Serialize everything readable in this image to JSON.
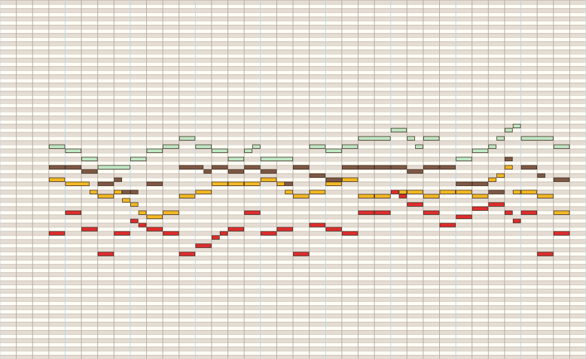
{
  "piano_roll": {
    "row_count": 87,
    "column_count": 36,
    "beats_per_bar": 4,
    "colors": {
      "background": "#fffef6",
      "row_alternate": "#e5dcd3",
      "row_line": "#b0a8a0",
      "beat_line": "#b4aaa3",
      "bar_line": "#bcd6e6",
      "note_outline": "#3b2a1c"
    },
    "tracks": [
      {
        "name": "green",
        "color": "#bfe6c4",
        "notes": [
          [
            3,
            35,
            1
          ],
          [
            4,
            36,
            1
          ],
          [
            5,
            38,
            1
          ],
          [
            6,
            40,
            2
          ],
          [
            8,
            38,
            1
          ],
          [
            9,
            36,
            1
          ],
          [
            10,
            35,
            1
          ],
          [
            11,
            33,
            1
          ],
          [
            12,
            35,
            1
          ],
          [
            13,
            36,
            1
          ],
          [
            14,
            38,
            1
          ],
          [
            15,
            36,
            0.5
          ],
          [
            15.5,
            35,
            0.5
          ],
          [
            16,
            38,
            2
          ],
          [
            18,
            40,
            1
          ],
          [
            19,
            35,
            1
          ],
          [
            20,
            36,
            1
          ],
          [
            21,
            35,
            1
          ],
          [
            22,
            33,
            2
          ],
          [
            24,
            31,
            1
          ],
          [
            25,
            33,
            0.5
          ],
          [
            25.5,
            35,
            0.5
          ],
          [
            26,
            33,
            1
          ],
          [
            28,
            38,
            1
          ],
          [
            29,
            36,
            1
          ],
          [
            30,
            35,
            0.5
          ],
          [
            30.5,
            33,
            0.5
          ],
          [
            31,
            31,
            0.5
          ],
          [
            31.5,
            30,
            0.5
          ],
          [
            32,
            33,
            2
          ],
          [
            34,
            35,
            1
          ]
        ]
      },
      {
        "name": "brown",
        "color": "#7e5845",
        "notes": [
          [
            3,
            40,
            1
          ],
          [
            4,
            40,
            1
          ],
          [
            5,
            41,
            1
          ],
          [
            6,
            44,
            1
          ],
          [
            7,
            43,
            0.5
          ],
          [
            7.5,
            46,
            0.5
          ],
          [
            8,
            46,
            0.5
          ],
          [
            9,
            44,
            1
          ],
          [
            11,
            40,
            1.5
          ],
          [
            12.5,
            41,
            0.5
          ],
          [
            13,
            40,
            1
          ],
          [
            14,
            41,
            1
          ],
          [
            15,
            40,
            1
          ],
          [
            16,
            41,
            1
          ],
          [
            17,
            44,
            1
          ],
          [
            18,
            40,
            1
          ],
          [
            19,
            42,
            1
          ],
          [
            20,
            43,
            1
          ],
          [
            21,
            40,
            1
          ],
          [
            22,
            40,
            1
          ],
          [
            23,
            40,
            1
          ],
          [
            24,
            40,
            1
          ],
          [
            25,
            41,
            1
          ],
          [
            26,
            40,
            1
          ],
          [
            27,
            40,
            1
          ],
          [
            28,
            44,
            1
          ],
          [
            29,
            44,
            1
          ],
          [
            30,
            46,
            1
          ],
          [
            31,
            38,
            0.5
          ],
          [
            32,
            40,
            1
          ],
          [
            33,
            42,
            0.5
          ],
          [
            34,
            43,
            1
          ]
        ]
      },
      {
        "name": "yellow",
        "color": "#f2b723",
        "notes": [
          [
            3,
            43,
            1
          ],
          [
            4,
            44,
            1.5
          ],
          [
            5.5,
            46,
            0.5
          ],
          [
            6,
            47,
            1
          ],
          [
            7,
            46,
            0.5
          ],
          [
            7.5,
            48,
            0.5
          ],
          [
            8,
            49,
            0.5
          ],
          [
            8.5,
            51,
            0.5
          ],
          [
            9,
            52,
            1
          ],
          [
            10,
            51,
            1
          ],
          [
            11,
            47,
            1
          ],
          [
            12,
            46,
            1
          ],
          [
            13,
            44,
            1
          ],
          [
            14,
            44,
            1
          ],
          [
            15,
            44,
            1
          ],
          [
            16,
            43,
            1
          ],
          [
            17,
            44,
            0.5
          ],
          [
            17.5,
            46,
            0.5
          ],
          [
            18,
            47,
            1
          ],
          [
            19,
            46,
            1
          ],
          [
            20,
            44,
            1
          ],
          [
            21,
            43,
            1
          ],
          [
            22,
            47,
            1
          ],
          [
            23,
            47,
            1
          ],
          [
            24.5,
            46,
            0.5
          ],
          [
            25,
            46,
            1
          ],
          [
            26,
            47,
            1
          ],
          [
            27,
            46,
            1
          ],
          [
            28,
            46,
            1
          ],
          [
            29,
            47,
            1
          ],
          [
            30,
            43,
            0.5
          ],
          [
            30.5,
            42,
            0.5
          ],
          [
            31,
            40,
            0.5
          ],
          [
            31.5,
            46,
            0.5
          ],
          [
            32,
            46,
            1
          ],
          [
            33,
            47,
            1
          ],
          [
            34,
            51,
            1
          ]
        ]
      },
      {
        "name": "red",
        "color": "#dd2d2d",
        "notes": [
          [
            3,
            56,
            1
          ],
          [
            4,
            51,
            1
          ],
          [
            5,
            55,
            1
          ],
          [
            6,
            61,
            1
          ],
          [
            7,
            56,
            1
          ],
          [
            8,
            53,
            0.5
          ],
          [
            8.5,
            54,
            0.5
          ],
          [
            9,
            55,
            1
          ],
          [
            10,
            56,
            1
          ],
          [
            11,
            61,
            1
          ],
          [
            12,
            59,
            1
          ],
          [
            13,
            57,
            0.5
          ],
          [
            13.5,
            56,
            0.5
          ],
          [
            14,
            55,
            1
          ],
          [
            15,
            51,
            1
          ],
          [
            16,
            56,
            1
          ],
          [
            17,
            55,
            1
          ],
          [
            18,
            61,
            1
          ],
          [
            19,
            54,
            1
          ],
          [
            20,
            55,
            1
          ],
          [
            21,
            56,
            1
          ],
          [
            22,
            51,
            1
          ],
          [
            23,
            51,
            1
          ],
          [
            24,
            46,
            0.5
          ],
          [
            24.5,
            47,
            0.5
          ],
          [
            25,
            49,
            1
          ],
          [
            26,
            51,
            1
          ],
          [
            27,
            54,
            1
          ],
          [
            28,
            52,
            1
          ],
          [
            29,
            50,
            1
          ],
          [
            30,
            49,
            1
          ],
          [
            31,
            51,
            0.5
          ],
          [
            31.5,
            53,
            0.5
          ],
          [
            32,
            51,
            1
          ],
          [
            33,
            61,
            1
          ],
          [
            34,
            56,
            1
          ]
        ]
      }
    ]
  }
}
